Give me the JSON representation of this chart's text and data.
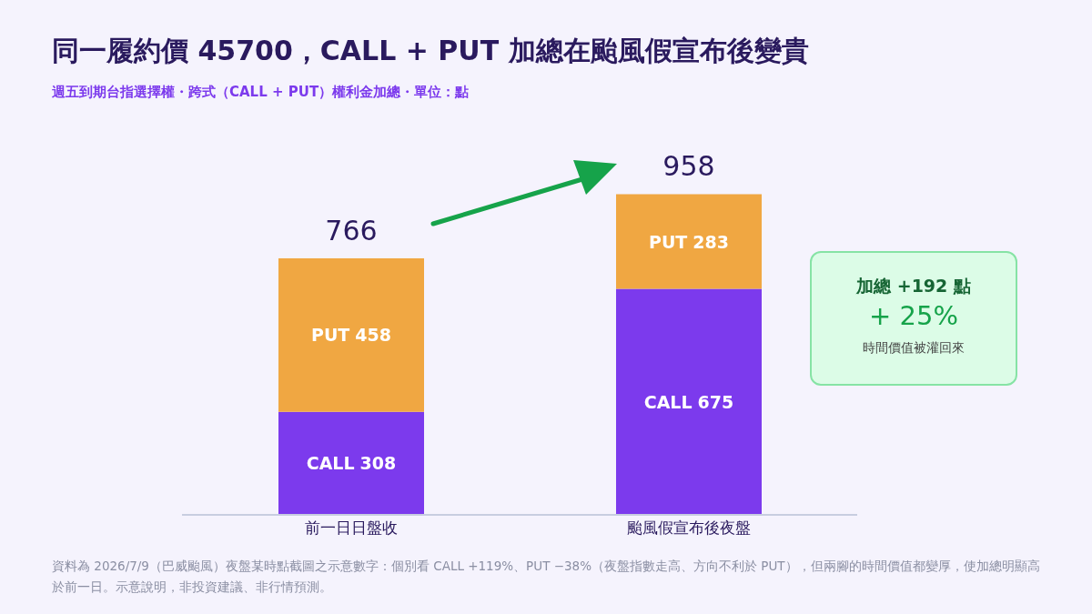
{
  "chart_data": {
    "type": "bar",
    "title": "同一履約價 45700，CALL + PUT 加總在颱風假宣布後變貴",
    "subtitle": "週五到期台指選擇權・跨式（CALL + PUT）權利金加總・單位：點",
    "categories": [
      "前一日日盤收",
      "颱風假宣布後夜盤"
    ],
    "stacked": true,
    "series": [
      {
        "name": "CALL",
        "color": "#7c3aed",
        "values": [
          308,
          675
        ]
      },
      {
        "name": "PUT",
        "color": "#f0a742",
        "values": [
          458,
          283
        ]
      }
    ],
    "data_labels": true,
    "totals": [
      "766",
      "958"
    ],
    "annotations": [
      "加總 +192 點",
      "+ 25%",
      "時間價值被灌回來",
      "資料為 2026/7/9（巴威颱風）夜盤某時點截圖之示意數字：個別看 CALL +119%、PUT −38%（夜盤指數走高、方向不利於 PUT），但兩腳的時間價值都變厚，使加總明顯高於前一日。示意說明，非投資建議、非行情預測。"
    ]
  }
}
